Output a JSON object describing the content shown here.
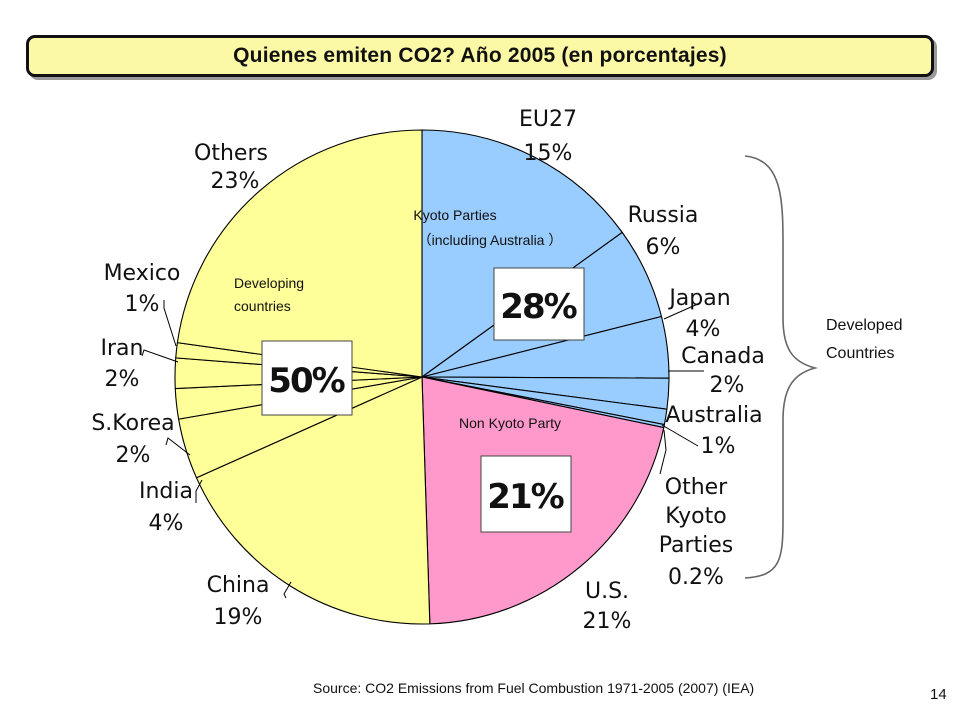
{
  "slide": {
    "title": "Quienes emiten CO2? Año 2005 (en porcentajes)",
    "source": "Source: CO2 Emissions from Fuel Combustion 1971-2005 (2007) (IEA)",
    "page_number": "14"
  },
  "chart_data": {
    "type": "pie",
    "title": "Quienes emiten CO2? Año 2005 (en porcentajes)",
    "unit": "%",
    "slices": [
      {
        "name": "EU27",
        "value": 15,
        "label": "15%",
        "group": "Kyoto Parties"
      },
      {
        "name": "Russia",
        "value": 6,
        "label": "6%",
        "group": "Kyoto Parties"
      },
      {
        "name": "Japan",
        "value": 4,
        "label": "4%",
        "group": "Kyoto Parties"
      },
      {
        "name": "Canada",
        "value": 2,
        "label": "2%",
        "group": "Kyoto Parties"
      },
      {
        "name": "Australia",
        "value": 1,
        "label": "1%",
        "group": "Kyoto Parties"
      },
      {
        "name": "Other Kyoto Parties",
        "value": 0.2,
        "label": "0.2%",
        "group": "Kyoto Parties"
      },
      {
        "name": "U.S.",
        "value": 21,
        "label": "21%",
        "group": "Non Kyoto Party"
      },
      {
        "name": "China",
        "value": 19,
        "label": "19%",
        "group": "Developing countries"
      },
      {
        "name": "India",
        "value": 4,
        "label": "4%",
        "group": "Developing countries"
      },
      {
        "name": "S.Korea",
        "value": 2,
        "label": "2%",
        "group": "Developing countries"
      },
      {
        "name": "Iran",
        "value": 2,
        "label": "2%",
        "group": "Developing countries"
      },
      {
        "name": "Mexico",
        "value": 1,
        "label": "1%",
        "group": "Developing countries"
      },
      {
        "name": "Others",
        "value": 23,
        "label": "23%",
        "group": "Developing countries"
      }
    ],
    "groups": [
      {
        "name": "Kyoto Parties",
        "sublabel": "（including Australia ）",
        "total": "28%",
        "color": "#99ccff"
      },
      {
        "name": "Non Kyoto Party",
        "total": "21%",
        "color": "#ff99cc"
      },
      {
        "name": "Developing countries",
        "display": [
          "Developing",
          "countries"
        ],
        "total": "50%",
        "color": "#ffff99"
      }
    ],
    "bracket_label": [
      "Developed",
      "Countries"
    ],
    "slice_display_names": {
      "Other Kyoto Parties": [
        "Other",
        "Kyoto",
        "Parties"
      ]
    }
  }
}
